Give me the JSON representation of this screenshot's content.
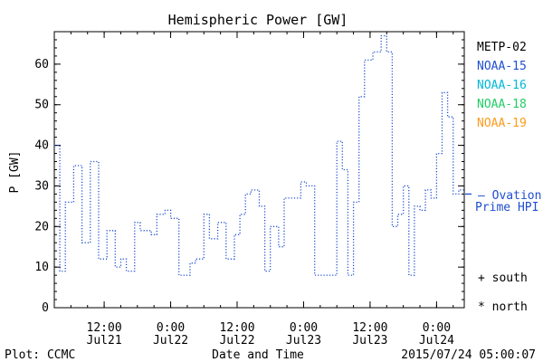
{
  "chart_data": {
    "type": "line",
    "title": "Hemispheric Power [GW]",
    "ylabel": "P [GW]",
    "xlabel": "Date and Time",
    "ylim": [
      0,
      68
    ],
    "y_ticks": [
      0,
      10,
      20,
      30,
      40,
      50,
      60
    ],
    "x_ticks": [
      {
        "time": "2015-07-21 12:00",
        "line1": "12:00",
        "line2": "Jul21"
      },
      {
        "time": "2015-07-22 00:00",
        "line1": "0:00",
        "line2": "Jul22"
      },
      {
        "time": "2015-07-22 12:00",
        "line1": "12:00",
        "line2": "Jul22"
      },
      {
        "time": "2015-07-23 00:00",
        "line1": "0:00",
        "line2": "Jul23"
      },
      {
        "time": "2015-07-23 12:00",
        "line1": "12:00",
        "line2": "Jul23"
      },
      {
        "time": "2015-07-24 00:00",
        "line1": "0:00",
        "line2": "Jul24"
      }
    ],
    "xlim": [
      "2015-07-21 03:00",
      "2015-07-24 05:00"
    ],
    "legend_satellites": [
      {
        "name": "METP-02",
        "color": "#000000"
      },
      {
        "name": "NOAA-15",
        "color": "#1f4fd0"
      },
      {
        "name": "NOAA-16",
        "color": "#00b8d8"
      },
      {
        "name": "NOAA-18",
        "color": "#22cc66"
      },
      {
        "name": "NOAA-19",
        "color": "#ff9a1a"
      }
    ],
    "ovation_value": 28,
    "ovation_label_line1": "— Ovation",
    "ovation_label_line2": "Prime HPI",
    "ovation_color": "#1f4fd0",
    "marker_south_label": "+ south",
    "marker_north_label": "* north",
    "series": [
      {
        "name": "NOAA-15",
        "color": "#1f4fd0",
        "x": [
          "2015-07-21 03:00",
          "2015-07-21 04:00",
          "2015-07-21 05:00",
          "2015-07-21 06:30",
          "2015-07-21 08:00",
          "2015-07-21 09:30",
          "2015-07-21 11:00",
          "2015-07-21 12:30",
          "2015-07-21 14:00",
          "2015-07-21 15:00",
          "2015-07-21 16:00",
          "2015-07-21 17:30",
          "2015-07-21 18:30",
          "2015-07-21 20:30",
          "2015-07-21 21:30",
          "2015-07-21 23:00",
          "2015-07-22 00:00",
          "2015-07-22 01:30",
          "2015-07-22 03:30",
          "2015-07-22 04:30",
          "2015-07-22 06:00",
          "2015-07-22 07:00",
          "2015-07-22 08:30",
          "2015-07-22 10:00",
          "2015-07-22 11:30",
          "2015-07-22 12:30",
          "2015-07-22 13:30",
          "2015-07-22 14:30",
          "2015-07-22 16:00",
          "2015-07-22 17:00",
          "2015-07-22 18:00",
          "2015-07-22 19:30",
          "2015-07-22 20:30",
          "2015-07-22 23:30",
          "2015-07-23 00:30",
          "2015-07-23 02:00",
          "2015-07-23 03:00",
          "2015-07-23 04:00",
          "2015-07-23 05:00",
          "2015-07-23 06:00",
          "2015-07-23 07:00",
          "2015-07-23 08:00",
          "2015-07-23 09:00",
          "2015-07-23 10:00",
          "2015-07-23 11:00",
          "2015-07-23 12:30",
          "2015-07-23 14:00",
          "2015-07-23 15:00",
          "2015-07-23 16:00",
          "2015-07-23 17:00",
          "2015-07-23 18:00",
          "2015-07-23 19:00",
          "2015-07-23 20:00",
          "2015-07-23 21:00",
          "2015-07-23 22:00",
          "2015-07-23 23:00",
          "2015-07-24 00:00",
          "2015-07-24 01:00",
          "2015-07-24 02:00",
          "2015-07-24 03:00",
          "2015-07-24 04:00"
        ],
        "y": [
          40,
          9,
          26,
          35,
          16,
          36,
          12,
          19,
          10,
          12,
          9,
          21,
          19,
          18,
          23,
          24,
          22,
          8,
          11,
          12,
          23,
          17,
          21,
          12,
          18,
          23,
          28,
          29,
          25,
          9,
          20,
          15,
          27,
          31,
          30,
          8,
          8,
          8,
          8,
          41,
          34,
          8,
          26,
          52,
          61,
          63,
          67,
          63,
          20,
          23,
          30,
          8,
          25,
          24,
          29,
          27,
          38,
          53,
          47,
          28,
          29
        ]
      }
    ]
  },
  "footer": {
    "left": "Plot: CCMC",
    "right": "2015/07/24 05:00:07"
  }
}
